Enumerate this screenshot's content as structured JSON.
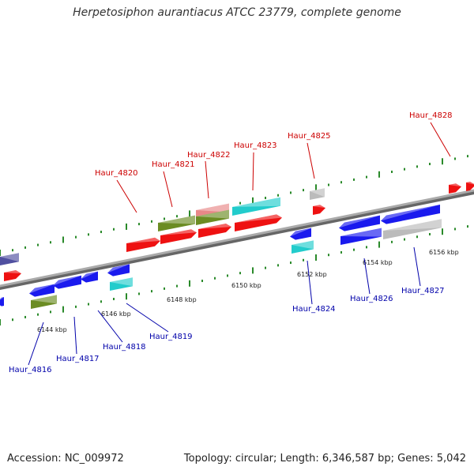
{
  "title": "Herpetosiphon aurantiacus ATCC 23779, complete genome",
  "accession": "Accession: NC_009972",
  "stats": "Topology: circular; Length: 6,346,587 bp; Genes: 5,042",
  "colors": {
    "forward_label": "#cc0000",
    "reverse_label": "#0000aa",
    "red": "#ee1111",
    "blue": "#1a1aee",
    "olive": "#6b8c23",
    "cyan": "#22cccc",
    "grey": "#bbbbbb",
    "pink": "#e88888",
    "purple": "#5050a0",
    "tick_green": "#2a8a2a",
    "backbone": "#888888"
  },
  "tick_labels": [
    "6144 kbp",
    "6146 kbp",
    "6148 kbp",
    "6150 kbp",
    "6152 kbp",
    "6154 kbp",
    "6156 kbp"
  ],
  "forward_genes": [
    "Haur_4820",
    "Haur_4821",
    "Haur_4822",
    "Haur_4823",
    "Haur_4825",
    "Haur_4828"
  ],
  "reverse_genes": [
    "Haur_4816",
    "Haur_4817",
    "Haur_4818",
    "Haur_4819",
    "Haur_4824",
    "Haur_4826",
    "Haur_4827"
  ]
}
